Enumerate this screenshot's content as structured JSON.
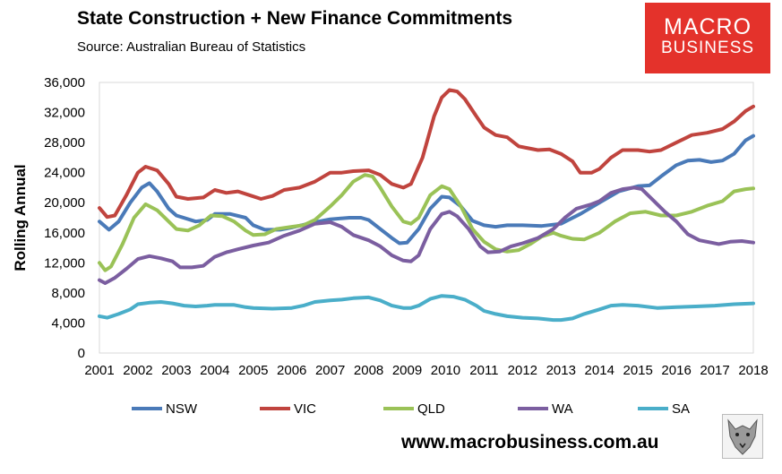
{
  "header": {
    "title": "State Construction + New Finance Commitments",
    "source": "Source: Australian Bureau of Statistics"
  },
  "logo": {
    "line1": "MACRO",
    "line2": "BUSINESS",
    "color": "#e4322b"
  },
  "footer": {
    "url": "www.macrobusiness.com.au",
    "mascot": "wolf-icon"
  },
  "chart_data": {
    "type": "line",
    "title": "State Construction + New Finance Commitments",
    "xlabel": "",
    "ylabel": "Rolling Annual",
    "xlim": [
      2001,
      2018
    ],
    "ylim": [
      0,
      36000
    ],
    "yticks": [
      0,
      4000,
      8000,
      12000,
      16000,
      20000,
      24000,
      28000,
      32000,
      36000
    ],
    "ytick_labels": [
      "0",
      "4,000",
      "8,000",
      "12,000",
      "16,000",
      "20,000",
      "24,000",
      "28,000",
      "32,000",
      "36,000"
    ],
    "xticks": [
      2001,
      2002,
      2003,
      2004,
      2005,
      2006,
      2007,
      2008,
      2009,
      2010,
      2011,
      2012,
      2013,
      2014,
      2015,
      2016,
      2017,
      2018
    ],
    "xtick_labels": [
      "2001",
      "2002",
      "2003",
      "2004",
      "2005",
      "2006",
      "2007",
      "2008",
      "2009",
      "2010",
      "2011",
      "2012",
      "2013",
      "2014",
      "2015",
      "2016",
      "2017",
      "2018"
    ],
    "legend_position": "bottom",
    "grid": false,
    "series": [
      {
        "name": "NSW",
        "color": "#4a7ab8",
        "points": [
          [
            2001.0,
            17500
          ],
          [
            2001.25,
            16400
          ],
          [
            2001.5,
            17500
          ],
          [
            2001.8,
            20000
          ],
          [
            2002.1,
            22000
          ],
          [
            2002.3,
            22600
          ],
          [
            2002.5,
            21500
          ],
          [
            2002.8,
            19200
          ],
          [
            2003.0,
            18300
          ],
          [
            2003.5,
            17500
          ],
          [
            2003.8,
            17700
          ],
          [
            2004.0,
            18500
          ],
          [
            2004.4,
            18500
          ],
          [
            2004.8,
            18000
          ],
          [
            2005.0,
            17000
          ],
          [
            2005.3,
            16400
          ],
          [
            2005.7,
            16400
          ],
          [
            2006.0,
            16700
          ],
          [
            2006.5,
            17300
          ],
          [
            2007.0,
            17800
          ],
          [
            2007.5,
            18000
          ],
          [
            2007.8,
            18000
          ],
          [
            2008.0,
            17700
          ],
          [
            2008.3,
            16500
          ],
          [
            2008.6,
            15300
          ],
          [
            2008.8,
            14600
          ],
          [
            2009.0,
            14700
          ],
          [
            2009.3,
            16500
          ],
          [
            2009.6,
            19200
          ],
          [
            2009.9,
            20800
          ],
          [
            2010.1,
            20700
          ],
          [
            2010.4,
            19500
          ],
          [
            2010.7,
            17600
          ],
          [
            2011.0,
            17000
          ],
          [
            2011.3,
            16800
          ],
          [
            2011.6,
            17000
          ],
          [
            2012.0,
            17000
          ],
          [
            2012.5,
            16900
          ],
          [
            2013.0,
            17200
          ],
          [
            2013.5,
            18500
          ],
          [
            2014.0,
            20000
          ],
          [
            2014.5,
            21500
          ],
          [
            2015.0,
            22200
          ],
          [
            2015.3,
            22300
          ],
          [
            2015.6,
            23500
          ],
          [
            2016.0,
            25000
          ],
          [
            2016.3,
            25600
          ],
          [
            2016.6,
            25700
          ],
          [
            2016.9,
            25400
          ],
          [
            2017.2,
            25600
          ],
          [
            2017.5,
            26500
          ],
          [
            2017.8,
            28300
          ],
          [
            2018.0,
            28900
          ]
        ]
      },
      {
        "name": "VIC",
        "color": "#c0443e",
        "points": [
          [
            2001.0,
            19300
          ],
          [
            2001.2,
            18100
          ],
          [
            2001.4,
            18300
          ],
          [
            2001.7,
            21000
          ],
          [
            2002.0,
            24000
          ],
          [
            2002.2,
            24800
          ],
          [
            2002.5,
            24300
          ],
          [
            2002.8,
            22500
          ],
          [
            2003.0,
            20800
          ],
          [
            2003.3,
            20500
          ],
          [
            2003.7,
            20700
          ],
          [
            2004.0,
            21700
          ],
          [
            2004.3,
            21300
          ],
          [
            2004.6,
            21500
          ],
          [
            2004.9,
            21000
          ],
          [
            2005.2,
            20500
          ],
          [
            2005.5,
            20900
          ],
          [
            2005.8,
            21700
          ],
          [
            2006.2,
            22000
          ],
          [
            2006.6,
            22800
          ],
          [
            2007.0,
            24000
          ],
          [
            2007.3,
            24000
          ],
          [
            2007.6,
            24200
          ],
          [
            2008.0,
            24300
          ],
          [
            2008.3,
            23700
          ],
          [
            2008.6,
            22500
          ],
          [
            2008.9,
            22000
          ],
          [
            2009.1,
            22500
          ],
          [
            2009.4,
            26000
          ],
          [
            2009.7,
            31500
          ],
          [
            2009.9,
            34000
          ],
          [
            2010.1,
            35000
          ],
          [
            2010.3,
            34800
          ],
          [
            2010.5,
            33800
          ],
          [
            2010.8,
            31500
          ],
          [
            2011.0,
            30000
          ],
          [
            2011.3,
            29000
          ],
          [
            2011.6,
            28700
          ],
          [
            2011.9,
            27500
          ],
          [
            2012.1,
            27300
          ],
          [
            2012.4,
            27000
          ],
          [
            2012.7,
            27100
          ],
          [
            2013.0,
            26500
          ],
          [
            2013.3,
            25500
          ],
          [
            2013.5,
            24000
          ],
          [
            2013.8,
            24000
          ],
          [
            2014.0,
            24500
          ],
          [
            2014.3,
            26000
          ],
          [
            2014.6,
            27000
          ],
          [
            2015.0,
            27000
          ],
          [
            2015.3,
            26800
          ],
          [
            2015.6,
            27000
          ],
          [
            2016.0,
            28000
          ],
          [
            2016.4,
            29000
          ],
          [
            2016.8,
            29300
          ],
          [
            2017.2,
            29800
          ],
          [
            2017.5,
            30800
          ],
          [
            2017.8,
            32200
          ],
          [
            2018.0,
            32800
          ]
        ]
      },
      {
        "name": "QLD",
        "color": "#9ac257",
        "points": [
          [
            2001.0,
            12000
          ],
          [
            2001.15,
            11000
          ],
          [
            2001.3,
            11500
          ],
          [
            2001.6,
            14500
          ],
          [
            2001.9,
            18000
          ],
          [
            2002.2,
            19800
          ],
          [
            2002.5,
            19000
          ],
          [
            2002.8,
            17500
          ],
          [
            2003.0,
            16500
          ],
          [
            2003.3,
            16300
          ],
          [
            2003.6,
            17000
          ],
          [
            2003.9,
            18300
          ],
          [
            2004.2,
            18200
          ],
          [
            2004.5,
            17500
          ],
          [
            2004.8,
            16300
          ],
          [
            2005.0,
            15700
          ],
          [
            2005.3,
            15800
          ],
          [
            2005.6,
            16500
          ],
          [
            2006.0,
            16800
          ],
          [
            2006.3,
            17000
          ],
          [
            2006.6,
            17700
          ],
          [
            2007.0,
            19500
          ],
          [
            2007.3,
            21000
          ],
          [
            2007.6,
            22800
          ],
          [
            2007.9,
            23700
          ],
          [
            2008.1,
            23500
          ],
          [
            2008.3,
            22000
          ],
          [
            2008.6,
            19500
          ],
          [
            2008.9,
            17500
          ],
          [
            2009.1,
            17200
          ],
          [
            2009.3,
            18000
          ],
          [
            2009.6,
            21000
          ],
          [
            2009.9,
            22200
          ],
          [
            2010.1,
            21800
          ],
          [
            2010.4,
            19500
          ],
          [
            2010.7,
            16500
          ],
          [
            2011.0,
            14800
          ],
          [
            2011.3,
            13800
          ],
          [
            2011.6,
            13500
          ],
          [
            2011.9,
            13700
          ],
          [
            2012.2,
            14500
          ],
          [
            2012.5,
            15500
          ],
          [
            2012.8,
            16000
          ],
          [
            2013.0,
            15600
          ],
          [
            2013.3,
            15200
          ],
          [
            2013.6,
            15100
          ],
          [
            2014.0,
            16000
          ],
          [
            2014.4,
            17500
          ],
          [
            2014.8,
            18600
          ],
          [
            2015.2,
            18800
          ],
          [
            2015.6,
            18300
          ],
          [
            2016.0,
            18300
          ],
          [
            2016.4,
            18800
          ],
          [
            2016.8,
            19600
          ],
          [
            2017.2,
            20200
          ],
          [
            2017.5,
            21500
          ],
          [
            2017.8,
            21800
          ],
          [
            2018.0,
            21900
          ]
        ]
      },
      {
        "name": "WA",
        "color": "#7b5ea0",
        "points": [
          [
            2001.0,
            9700
          ],
          [
            2001.15,
            9300
          ],
          [
            2001.4,
            10000
          ],
          [
            2001.7,
            11200
          ],
          [
            2002.0,
            12500
          ],
          [
            2002.3,
            12900
          ],
          [
            2002.6,
            12600
          ],
          [
            2002.9,
            12200
          ],
          [
            2003.1,
            11400
          ],
          [
            2003.4,
            11400
          ],
          [
            2003.7,
            11600
          ],
          [
            2004.0,
            12800
          ],
          [
            2004.3,
            13400
          ],
          [
            2004.6,
            13800
          ],
          [
            2005.0,
            14300
          ],
          [
            2005.4,
            14700
          ],
          [
            2005.8,
            15600
          ],
          [
            2006.2,
            16300
          ],
          [
            2006.6,
            17200
          ],
          [
            2007.0,
            17400
          ],
          [
            2007.3,
            16800
          ],
          [
            2007.6,
            15700
          ],
          [
            2008.0,
            15000
          ],
          [
            2008.3,
            14200
          ],
          [
            2008.6,
            13000
          ],
          [
            2008.9,
            12300
          ],
          [
            2009.1,
            12200
          ],
          [
            2009.3,
            13000
          ],
          [
            2009.6,
            16500
          ],
          [
            2009.9,
            18500
          ],
          [
            2010.1,
            18800
          ],
          [
            2010.3,
            18200
          ],
          [
            2010.6,
            16500
          ],
          [
            2010.9,
            14200
          ],
          [
            2011.1,
            13400
          ],
          [
            2011.4,
            13500
          ],
          [
            2011.7,
            14200
          ],
          [
            2012.0,
            14600
          ],
          [
            2012.4,
            15300
          ],
          [
            2012.8,
            16500
          ],
          [
            2013.1,
            18000
          ],
          [
            2013.4,
            19200
          ],
          [
            2013.8,
            19800
          ],
          [
            2014.0,
            20200
          ],
          [
            2014.3,
            21300
          ],
          [
            2014.6,
            21800
          ],
          [
            2014.9,
            22000
          ],
          [
            2015.1,
            21800
          ],
          [
            2015.4,
            20300
          ],
          [
            2015.7,
            18800
          ],
          [
            2016.0,
            17500
          ],
          [
            2016.3,
            15800
          ],
          [
            2016.6,
            15000
          ],
          [
            2016.9,
            14700
          ],
          [
            2017.1,
            14500
          ],
          [
            2017.4,
            14800
          ],
          [
            2017.7,
            14900
          ],
          [
            2018.0,
            14700
          ]
        ]
      },
      {
        "name": "SA",
        "color": "#4aaec9",
        "points": [
          [
            2001.0,
            4900
          ],
          [
            2001.2,
            4700
          ],
          [
            2001.5,
            5200
          ],
          [
            2001.8,
            5800
          ],
          [
            2002.0,
            6500
          ],
          [
            2002.3,
            6700
          ],
          [
            2002.6,
            6800
          ],
          [
            2002.9,
            6600
          ],
          [
            2003.2,
            6300
          ],
          [
            2003.5,
            6200
          ],
          [
            2003.8,
            6300
          ],
          [
            2004.0,
            6400
          ],
          [
            2004.5,
            6400
          ],
          [
            2004.8,
            6100
          ],
          [
            2005.0,
            6000
          ],
          [
            2005.5,
            5900
          ],
          [
            2006.0,
            6000
          ],
          [
            2006.3,
            6300
          ],
          [
            2006.6,
            6800
          ],
          [
            2007.0,
            7000
          ],
          [
            2007.3,
            7100
          ],
          [
            2007.6,
            7300
          ],
          [
            2008.0,
            7400
          ],
          [
            2008.3,
            7000
          ],
          [
            2008.6,
            6300
          ],
          [
            2008.9,
            6000
          ],
          [
            2009.1,
            6000
          ],
          [
            2009.3,
            6300
          ],
          [
            2009.6,
            7200
          ],
          [
            2009.9,
            7600
          ],
          [
            2010.2,
            7500
          ],
          [
            2010.5,
            7100
          ],
          [
            2010.8,
            6300
          ],
          [
            2011.0,
            5600
          ],
          [
            2011.3,
            5200
          ],
          [
            2011.6,
            4900
          ],
          [
            2012.0,
            4700
          ],
          [
            2012.4,
            4600
          ],
          [
            2012.8,
            4400
          ],
          [
            2013.0,
            4400
          ],
          [
            2013.3,
            4600
          ],
          [
            2013.6,
            5200
          ],
          [
            2014.0,
            5800
          ],
          [
            2014.3,
            6300
          ],
          [
            2014.6,
            6400
          ],
          [
            2015.0,
            6300
          ],
          [
            2015.5,
            6000
          ],
          [
            2016.0,
            6100
          ],
          [
            2016.5,
            6200
          ],
          [
            2017.0,
            6300
          ],
          [
            2017.5,
            6500
          ],
          [
            2018.0,
            6600
          ]
        ]
      }
    ]
  }
}
